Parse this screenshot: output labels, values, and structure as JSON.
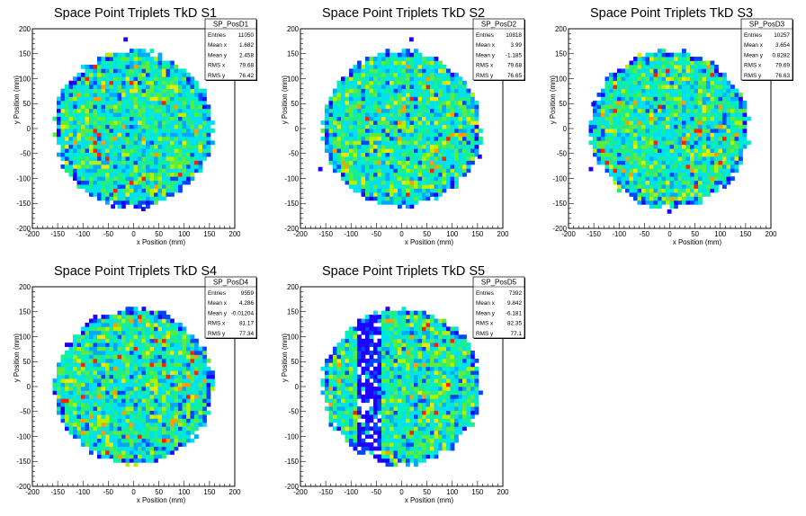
{
  "chart_data": [
    {
      "type": "heatmap",
      "title": "Space Point Triplets TkD S1",
      "xlabel": "x Position (mm)",
      "ylabel": "y Position (mm)",
      "xlim": [
        -200,
        200
      ],
      "ylim": [
        -200,
        200
      ],
      "x_ticks": [
        -200,
        -150,
        -100,
        -50,
        0,
        50,
        100,
        150,
        200
      ],
      "y_ticks": [
        -200,
        -150,
        -100,
        -50,
        0,
        50,
        100,
        150,
        200
      ],
      "bin_width_mm": 8,
      "disk_radius_mm": 160,
      "outlier_bins": [
        [
          -20,
          175
        ],
        [
          -45,
          -160
        ],
        [
          15,
          -165
        ]
      ],
      "stats": {
        "name": "SP_PosD1",
        "rows": [
          {
            "label": "Entries",
            "value": "11050"
          },
          {
            "label": "Mean x",
            "value": "1.682"
          },
          {
            "label": "Mean y",
            "value": "2.458"
          },
          {
            "label": "RMS x",
            "value": "79.68"
          },
          {
            "label": "RMS y",
            "value": "76.42"
          }
        ]
      }
    },
    {
      "type": "heatmap",
      "title": "Space Point Triplets TkD S2",
      "xlabel": "x Position (mm)",
      "ylabel": "y Position (mm)",
      "xlim": [
        -200,
        200
      ],
      "ylim": [
        -200,
        200
      ],
      "x_ticks": [
        -200,
        -150,
        -100,
        -50,
        0,
        50,
        100,
        150,
        200
      ],
      "y_ticks": [
        -200,
        -150,
        -100,
        -50,
        0,
        50,
        100,
        150,
        200
      ],
      "bin_width_mm": 8,
      "disk_radius_mm": 160,
      "outlier_bins": [
        [
          15,
          175
        ],
        [
          -165,
          -85
        ],
        [
          150,
          -60
        ]
      ],
      "stats": {
        "name": "SP_PosD2",
        "rows": [
          {
            "label": "Entries",
            "value": "10818"
          },
          {
            "label": "Mean x",
            "value": "3.99"
          },
          {
            "label": "Mean y",
            "value": "-1.185"
          },
          {
            "label": "RMS x",
            "value": "79.68"
          },
          {
            "label": "RMS y",
            "value": "76.65"
          }
        ]
      }
    },
    {
      "type": "heatmap",
      "title": "Space Point Triplets TkD S3",
      "xlabel": "x Position (mm)",
      "ylabel": "y Position (mm)",
      "xlim": [
        -200,
        200
      ],
      "ylim": [
        -200,
        200
      ],
      "x_ticks": [
        -200,
        -150,
        -100,
        -50,
        0,
        50,
        100,
        150,
        200
      ],
      "y_ticks": [
        -200,
        -150,
        -100,
        -50,
        0,
        50,
        100,
        150,
        200
      ],
      "bin_width_mm": 8,
      "disk_radius_mm": 160,
      "outlier_bins": [
        [
          -160,
          -85
        ],
        [
          -5,
          -170
        ],
        [
          -155,
          45
        ]
      ],
      "stats": {
        "name": "SP_PosD3",
        "rows": [
          {
            "label": "Entries",
            "value": "10257"
          },
          {
            "label": "Mean x",
            "value": "3.654"
          },
          {
            "label": "Mean y",
            "value": "0.8282"
          },
          {
            "label": "RMS x",
            "value": "79.69"
          },
          {
            "label": "RMS y",
            "value": "76.63"
          }
        ]
      }
    },
    {
      "type": "heatmap",
      "title": "Space Point Triplets TkD S4",
      "xlabel": "x Position (mm)",
      "ylabel": "y Position (mm)",
      "xlim": [
        -200,
        200
      ],
      "ylim": [
        -200,
        200
      ],
      "x_ticks": [
        -200,
        -150,
        -100,
        -50,
        0,
        50,
        100,
        150,
        200
      ],
      "y_ticks": [
        -200,
        -150,
        -100,
        -50,
        0,
        50,
        100,
        150,
        200
      ],
      "bin_width_mm": 8,
      "disk_radius_mm": 160,
      "outlier_bins": [],
      "stats": {
        "name": "SP_PosD4",
        "rows": [
          {
            "label": "Entries",
            "value": "9559"
          },
          {
            "label": "Mean x",
            "value": "4.286"
          },
          {
            "label": "Mean y",
            "value": "-0.01204"
          },
          {
            "label": "RMS x",
            "value": "81.17"
          },
          {
            "label": "RMS y",
            "value": "77.34"
          }
        ]
      }
    },
    {
      "type": "heatmap",
      "title": "Space Point Triplets TkD S5",
      "xlabel": "x Position (mm)",
      "ylabel": "y Position (mm)",
      "xlim": [
        -200,
        200
      ],
      "ylim": [
        -200,
        200
      ],
      "x_ticks": [
        -200,
        -150,
        -100,
        -50,
        0,
        50,
        100,
        150,
        200
      ],
      "y_ticks": [
        -200,
        -150,
        -100,
        -50,
        0,
        50,
        100,
        150,
        200
      ],
      "bin_width_mm": 8,
      "disk_radius_mm": 160,
      "outlier_bins": [],
      "low_density_band_x_mm": [
        -90,
        -40
      ],
      "stats": {
        "name": "SP_PosD5",
        "rows": [
          {
            "label": "Entries",
            "value": "7392"
          },
          {
            "label": "Mean x",
            "value": "9.842"
          },
          {
            "label": "Mean y",
            "value": "-6.181"
          },
          {
            "label": "RMS x",
            "value": "82.35"
          },
          {
            "label": "RMS y",
            "value": "77.1"
          }
        ]
      }
    }
  ],
  "palette": [
    "#1f00ff",
    "#0045ff",
    "#00a8ff",
    "#00e0f0",
    "#00f0c0",
    "#20ee80",
    "#5cec40",
    "#b4f000",
    "#f0e800",
    "#ff9c00",
    "#ff2000"
  ]
}
